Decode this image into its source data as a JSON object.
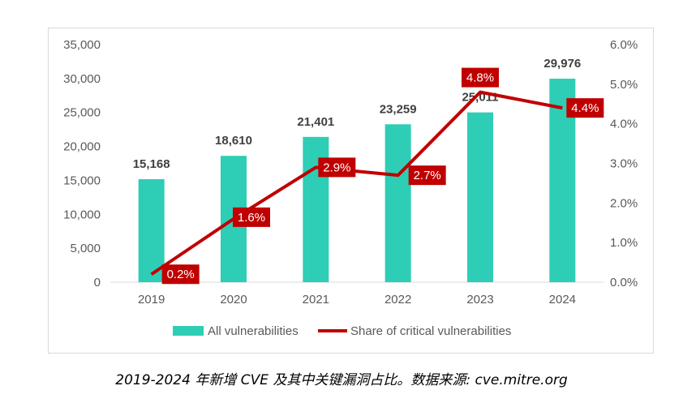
{
  "chart_data": {
    "type": "bar",
    "categories": [
      "2019",
      "2020",
      "2021",
      "2022",
      "2023",
      "2024"
    ],
    "series": [
      {
        "name": "All vulnerabilities",
        "type": "bar",
        "axis": "left",
        "values": [
          15168,
          18610,
          21401,
          23259,
          25011,
          29976
        ],
        "labels": [
          "15,168",
          "18,610",
          "21,401",
          "23,259",
          "25,011",
          "29,976"
        ],
        "color": "#2ecdb5"
      },
      {
        "name": "Share of critical vulnerabilities",
        "type": "line",
        "axis": "right",
        "values": [
          0.2,
          1.6,
          2.9,
          2.7,
          4.8,
          4.4
        ],
        "labels": [
          "0.2%",
          "1.6%",
          "2.9%",
          "2.7%",
          "4.8%",
          "4.4%"
        ],
        "color": "#c00000"
      }
    ],
    "y_left": {
      "range": [
        0,
        35000
      ],
      "ticks": [
        "0",
        "5,000",
        "10,000",
        "15,000",
        "20,000",
        "25,000",
        "30,000",
        "35,000"
      ]
    },
    "y_right": {
      "range": [
        0,
        6
      ],
      "ticks": [
        "0.0%",
        "1.0%",
        "2.0%",
        "3.0%",
        "4.0%",
        "5.0%",
        "6.0%"
      ]
    },
    "grid": false,
    "legend": "bottom"
  },
  "caption": "2019-2024 年新增 CVE 及其中关键漏洞占比。数据来源: cve.mitre.org"
}
